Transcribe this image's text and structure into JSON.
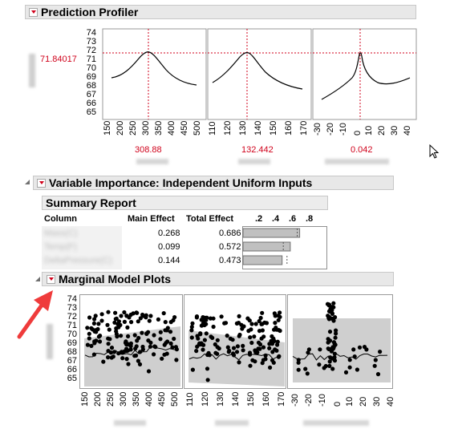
{
  "profiler": {
    "title": "Prediction Profiler",
    "response_value": "71.84017",
    "yticks": [
      "74",
      "73",
      "72",
      "71",
      "70",
      "69",
      "68",
      "67",
      "66",
      "65"
    ],
    "panels": [
      {
        "xticks": [
          "150",
          "200",
          "250",
          "300",
          "350",
          "400",
          "450",
          "500"
        ],
        "current": "308.88"
      },
      {
        "xticks": [
          "110",
          "120",
          "130",
          "140",
          "150",
          "160",
          "170"
        ],
        "current": "132.442"
      },
      {
        "xticks": [
          "-30",
          "-20",
          "-10",
          "0",
          "10",
          "20",
          "30",
          "40"
        ],
        "current": "0.042"
      }
    ]
  },
  "variable_importance": {
    "title": "Variable Importance: Independent Uniform Inputs",
    "summary_title": "Summary Report",
    "columns": {
      "column": "Column",
      "main": "Main Effect",
      "total": "Total Effect"
    },
    "bar_ticks": [
      ".2",
      ".4",
      ".6",
      ".8"
    ],
    "rows": [
      {
        "name": "Mass(C)",
        "main": "0.268",
        "total": "0.686",
        "bar": 0.686,
        "main_frac": 0.268
      },
      {
        "name": "Temp(F)",
        "main": "0.099",
        "total": "0.572",
        "bar": 0.572,
        "main_frac": 0.099
      },
      {
        "name": "DeltaPressure(C)",
        "main": "0.144",
        "total": "0.473",
        "bar": 0.473,
        "main_frac": 0.144
      }
    ]
  },
  "marginal": {
    "title": "Marginal Model Plots",
    "yticks": [
      "74",
      "73",
      "72",
      "71",
      "70",
      "69",
      "68",
      "67",
      "66",
      "65"
    ],
    "panels": [
      {
        "xticks": [
          "150",
          "200",
          "250",
          "300",
          "350",
          "400",
          "450",
          "500"
        ]
      },
      {
        "xticks": [
          "110",
          "120",
          "130",
          "140",
          "150",
          "160",
          "170"
        ]
      },
      {
        "xticks": [
          "-30",
          "-20",
          "-10",
          "0",
          "10",
          "20",
          "30",
          "40"
        ]
      }
    ]
  },
  "colors": {
    "accent_red": "#d0021b",
    "arrow_red": "#ef3b3b",
    "bar_fill": "#c0c0c0",
    "band": "#cfcfcf"
  },
  "icons": {
    "cursor": "mouse-pointer-icon",
    "annotation": "red-arrow-icon"
  }
}
